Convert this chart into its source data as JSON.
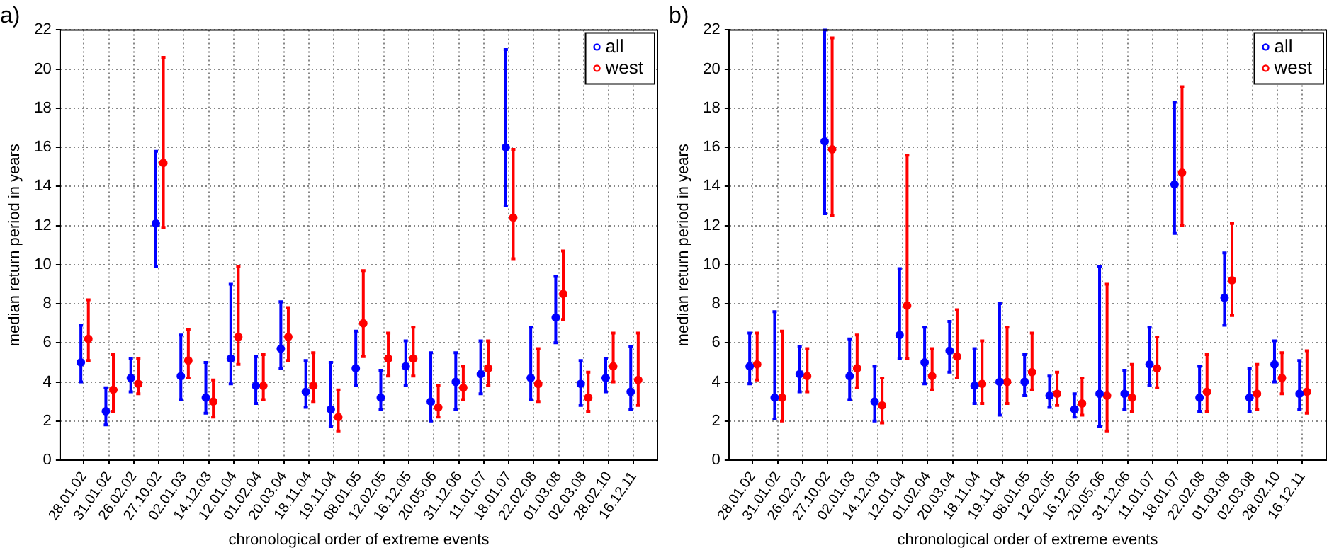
{
  "chart_data": [
    {
      "type": "scatter",
      "title": "a)",
      "xlabel": "chronological order of extreme events",
      "ylabel": "median return period in years",
      "categories": [
        "28.01.02",
        "31.01.02",
        "26.02.02",
        "27.10.02",
        "02.01.03",
        "14.12.03",
        "12.01.04",
        "01.02.04",
        "20.03.04",
        "18.11.04",
        "19.11.04",
        "08.01.05",
        "12.02.05",
        "16.12.05",
        "20.05.06",
        "31.12.06",
        "11.01.07",
        "18.01.07",
        "22.02.08",
        "01.03.08",
        "02.03.08",
        "28.02.10",
        "16.12.11"
      ],
      "series": [
        {
          "name": "all",
          "color": "#0000ff",
          "values": [
            5.0,
            2.5,
            4.2,
            12.1,
            4.3,
            3.2,
            5.2,
            3.8,
            5.7,
            3.5,
            2.6,
            4.7,
            3.2,
            4.8,
            3.0,
            4.0,
            4.4,
            16.0,
            4.2,
            7.3,
            3.9,
            4.2,
            3.5
          ],
          "errors": [
            [
              4.0,
              6.9
            ],
            [
              1.8,
              3.7
            ],
            [
              3.5,
              5.2
            ],
            [
              9.9,
              15.8
            ],
            [
              3.1,
              6.4
            ],
            [
              2.4,
              5.0
            ],
            [
              3.9,
              9.0
            ],
            [
              2.9,
              5.3
            ],
            [
              4.7,
              8.1
            ],
            [
              2.7,
              5.1
            ],
            [
              1.7,
              5.0
            ],
            [
              3.8,
              6.6
            ],
            [
              2.6,
              4.6
            ],
            [
              3.8,
              6.1
            ],
            [
              2.0,
              5.5
            ],
            [
              2.6,
              5.5
            ],
            [
              3.4,
              6.1
            ],
            [
              13.0,
              21.0
            ],
            [
              3.1,
              6.8
            ],
            [
              6.0,
              9.4
            ],
            [
              2.8,
              5.1
            ],
            [
              3.5,
              5.2
            ],
            [
              2.6,
              5.8
            ]
          ]
        },
        {
          "name": "west",
          "color": "#ff0000",
          "values": [
            6.2,
            3.6,
            3.9,
            15.2,
            5.1,
            3.0,
            6.3,
            3.8,
            6.3,
            3.8,
            2.2,
            7.0,
            5.2,
            5.2,
            2.7,
            3.7,
            4.7,
            12.4,
            3.9,
            8.5,
            3.2,
            4.8,
            4.1
          ],
          "errors": [
            [
              5.1,
              8.2
            ],
            [
              2.5,
              5.4
            ],
            [
              3.4,
              5.2
            ],
            [
              11.9,
              20.6
            ],
            [
              4.2,
              6.7
            ],
            [
              2.2,
              4.1
            ],
            [
              4.9,
              9.9
            ],
            [
              3.1,
              5.4
            ],
            [
              5.1,
              7.8
            ],
            [
              3.0,
              5.5
            ],
            [
              1.5,
              3.6
            ],
            [
              5.3,
              9.7
            ],
            [
              4.3,
              6.5
            ],
            [
              4.3,
              6.8
            ],
            [
              2.2,
              3.8
            ],
            [
              3.1,
              4.8
            ],
            [
              3.8,
              6.1
            ],
            [
              10.3,
              15.9
            ],
            [
              3.0,
              5.7
            ],
            [
              7.2,
              10.7
            ],
            [
              2.5,
              4.5
            ],
            [
              4.0,
              6.5
            ],
            [
              2.8,
              6.5
            ]
          ]
        }
      ],
      "ylim": [
        0,
        22
      ],
      "yticks": [
        0,
        2,
        4,
        6,
        8,
        10,
        12,
        14,
        16,
        18,
        20,
        22
      ],
      "grid": true,
      "legend": "top right",
      "marker": "circle"
    },
    {
      "type": "scatter",
      "title": "b)",
      "xlabel": "chronological order of extreme events",
      "ylabel": "median return period in years",
      "categories": [
        "28.01.02",
        "31.01.02",
        "26.02.02",
        "27.10.02",
        "02.01.03",
        "14.12.03",
        "12.01.04",
        "01.02.04",
        "20.03.04",
        "18.11.04",
        "19.11.04",
        "08.01.05",
        "12.02.05",
        "16.12.05",
        "20.05.06",
        "31.12.06",
        "11.01.07",
        "18.01.07",
        "22.02.08",
        "01.03.08",
        "02.03.08",
        "28.02.10",
        "16.12.11"
      ],
      "series": [
        {
          "name": "all",
          "color": "#0000ff",
          "values": [
            4.8,
            3.2,
            4.4,
            16.3,
            4.3,
            3.0,
            6.4,
            5.0,
            5.6,
            3.8,
            4.0,
            4.0,
            3.3,
            2.6,
            3.4,
            3.4,
            4.9,
            14.1,
            3.2,
            8.3,
            3.2,
            4.9,
            3.4
          ],
          "errors": [
            [
              3.9,
              6.5
            ],
            [
              2.1,
              7.6
            ],
            [
              3.5,
              5.8
            ],
            [
              12.6,
              22.0
            ],
            [
              3.1,
              6.2
            ],
            [
              2.0,
              4.8
            ],
            [
              5.2,
              9.8
            ],
            [
              3.9,
              6.8
            ],
            [
              4.5,
              7.1
            ],
            [
              2.9,
              5.7
            ],
            [
              2.3,
              8.0
            ],
            [
              3.3,
              5.4
            ],
            [
              2.7,
              4.3
            ],
            [
              2.2,
              3.4
            ],
            [
              1.7,
              9.9
            ],
            [
              2.6,
              4.6
            ],
            [
              3.8,
              6.8
            ],
            [
              11.6,
              18.3
            ],
            [
              2.5,
              4.8
            ],
            [
              6.9,
              10.6
            ],
            [
              2.5,
              4.7
            ],
            [
              4.0,
              6.1
            ],
            [
              2.6,
              5.1
            ]
          ]
        },
        {
          "name": "west",
          "color": "#ff0000",
          "values": [
            4.9,
            3.2,
            4.3,
            15.9,
            4.7,
            2.8,
            7.9,
            4.3,
            5.3,
            3.9,
            4.0,
            4.5,
            3.4,
            2.9,
            3.3,
            3.2,
            4.7,
            14.7,
            3.5,
            9.2,
            3.4,
            4.2,
            3.5
          ],
          "errors": [
            [
              4.1,
              6.5
            ],
            [
              2.0,
              6.6
            ],
            [
              3.5,
              5.7
            ],
            [
              12.5,
              21.6
            ],
            [
              3.7,
              6.4
            ],
            [
              1.9,
              4.2
            ],
            [
              5.2,
              15.6
            ],
            [
              3.6,
              5.7
            ],
            [
              4.2,
              7.7
            ],
            [
              2.9,
              6.1
            ],
            [
              2.9,
              6.8
            ],
            [
              3.6,
              6.5
            ],
            [
              2.8,
              4.5
            ],
            [
              2.3,
              4.2
            ],
            [
              1.5,
              9.0
            ],
            [
              2.5,
              4.9
            ],
            [
              3.7,
              6.3
            ],
            [
              12.0,
              19.1
            ],
            [
              2.5,
              5.4
            ],
            [
              7.4,
              12.1
            ],
            [
              2.6,
              4.9
            ],
            [
              3.4,
              5.5
            ],
            [
              2.4,
              5.6
            ]
          ]
        }
      ],
      "ylim": [
        0,
        22
      ],
      "yticks": [
        0,
        2,
        4,
        6,
        8,
        10,
        12,
        14,
        16,
        18,
        20,
        22
      ],
      "grid": true,
      "legend": "top right",
      "marker": "circle"
    }
  ]
}
